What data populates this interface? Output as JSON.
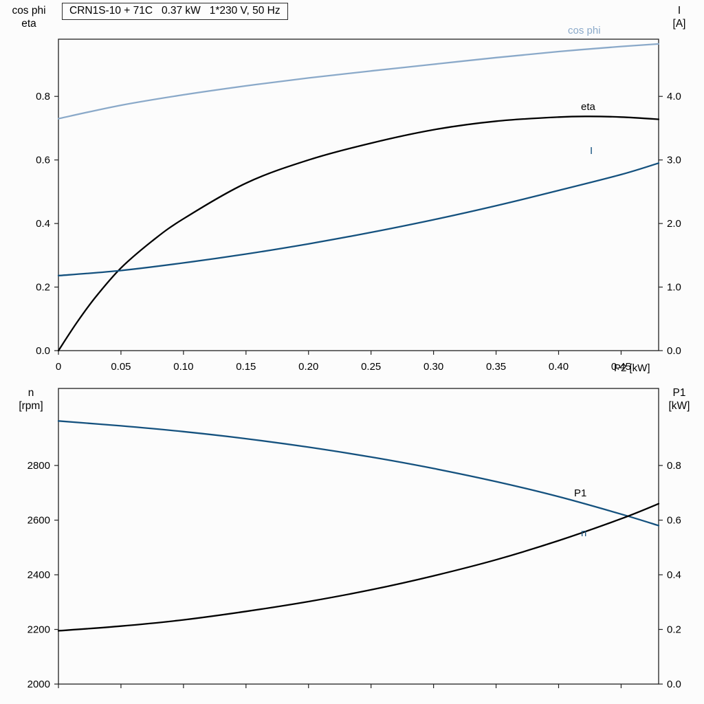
{
  "title_box": "CRN1S-10 + 71C   0.37 kW   1*230 V, 50 Hz",
  "axes": {
    "top_left_line1": "cos phi",
    "top_left_line2": "eta",
    "top_right_line1": "I",
    "top_right_line2": "[A]",
    "bottom_left_line1": "n",
    "bottom_left_line2": "[rpm]",
    "bottom_right_line1": "P1",
    "bottom_right_line2": "[kW]"
  },
  "colors": {
    "cos_phi": "#8aa9c9",
    "eta": "#000000",
    "current": "#14517e",
    "speed": "#14517e",
    "p1": "#000000",
    "frame": "#1f1f1f",
    "text": "#000000"
  },
  "chart_data": [
    {
      "type": "line",
      "plot": "top",
      "title": "CRN1S-10 + 71C 0.37 kW 1*230 V, 50 Hz",
      "xlabel": "P2 [kW]",
      "xlim": [
        0,
        0.48
      ],
      "x_ticks": [
        0,
        0.05,
        0.1,
        0.15,
        0.2,
        0.25,
        0.3,
        0.35,
        0.4,
        0.45
      ],
      "x_tick_labels": [
        "0",
        "0.05",
        "0.10",
        "0.15",
        "0.20",
        "0.25",
        "0.30",
        "0.35",
        "0.40",
        "0.45"
      ],
      "grid": false,
      "left_axis": {
        "title": "cos phi / eta",
        "lim": [
          0,
          0.98
        ],
        "ticks": [
          0,
          0.2,
          0.4,
          0.6,
          0.8
        ],
        "tick_labels": [
          "0.0",
          "0.2",
          "0.4",
          "0.6",
          "0.8"
        ]
      },
      "right_axis": {
        "title": "I [A]",
        "lim": [
          0,
          4.9
        ],
        "ticks": [
          0,
          1,
          2,
          3,
          4
        ],
        "tick_labels": [
          "0.0",
          "1.0",
          "2.0",
          "3.0",
          "4.0"
        ]
      },
      "series": [
        {
          "name": "cos phi",
          "axis": "left",
          "color_key": "cos_phi",
          "x": [
            0,
            0.05,
            0.1,
            0.15,
            0.2,
            0.25,
            0.3,
            0.35,
            0.4,
            0.45,
            0.48
          ],
          "y": [
            0.73,
            0.772,
            0.805,
            0.833,
            0.858,
            0.88,
            0.901,
            0.922,
            0.941,
            0.957,
            0.965
          ]
        },
        {
          "name": "eta",
          "axis": "left",
          "color_key": "eta",
          "x": [
            0,
            0.015,
            0.03,
            0.05,
            0.075,
            0.1,
            0.15,
            0.2,
            0.25,
            0.3,
            0.35,
            0.4,
            0.425,
            0.45,
            0.48
          ],
          "y": [
            0,
            0.09,
            0.17,
            0.26,
            0.345,
            0.415,
            0.527,
            0.6,
            0.653,
            0.695,
            0.722,
            0.735,
            0.737,
            0.735,
            0.728
          ]
        },
        {
          "name": "I",
          "axis": "right",
          "color_key": "current",
          "x": [
            0,
            0.05,
            0.1,
            0.15,
            0.2,
            0.25,
            0.3,
            0.35,
            0.4,
            0.45,
            0.48
          ],
          "y": [
            1.18,
            1.26,
            1.38,
            1.52,
            1.68,
            1.86,
            2.06,
            2.28,
            2.52,
            2.77,
            2.95
          ]
        }
      ]
    },
    {
      "type": "line",
      "plot": "bottom",
      "title": "",
      "xlabel": "",
      "xlim": [
        0,
        0.48
      ],
      "x_ticks": [
        0,
        0.05,
        0.1,
        0.15,
        0.2,
        0.25,
        0.3,
        0.35,
        0.4,
        0.45
      ],
      "x_tick_labels": [],
      "grid": false,
      "left_axis": {
        "title": "n [rpm]",
        "lim": [
          2000,
          3082
        ],
        "ticks": [
          2000,
          2200,
          2400,
          2600,
          2800
        ],
        "tick_labels": [
          "2000",
          "2200",
          "2400",
          "2600",
          "2800"
        ]
      },
      "right_axis": {
        "title": "P1 [kW]",
        "lim": [
          0,
          1.082
        ],
        "ticks": [
          0,
          0.2,
          0.4,
          0.6,
          0.8
        ],
        "tick_labels": [
          "0.0",
          "0.2",
          "0.4",
          "0.6",
          "0.8"
        ]
      },
      "series": [
        {
          "name": "n",
          "axis": "left",
          "color_key": "speed",
          "x": [
            0,
            0.05,
            0.1,
            0.15,
            0.2,
            0.25,
            0.3,
            0.35,
            0.4,
            0.45,
            0.48
          ],
          "y": [
            2963,
            2945,
            2924,
            2898,
            2867,
            2831,
            2789,
            2741,
            2686,
            2622,
            2580
          ]
        },
        {
          "name": "P1",
          "axis": "right",
          "color_key": "p1",
          "x": [
            0,
            0.05,
            0.1,
            0.15,
            0.2,
            0.25,
            0.3,
            0.35,
            0.4,
            0.45,
            0.48
          ],
          "y": [
            0.195,
            0.212,
            0.235,
            0.266,
            0.302,
            0.345,
            0.396,
            0.455,
            0.525,
            0.605,
            0.66
          ]
        }
      ]
    }
  ]
}
